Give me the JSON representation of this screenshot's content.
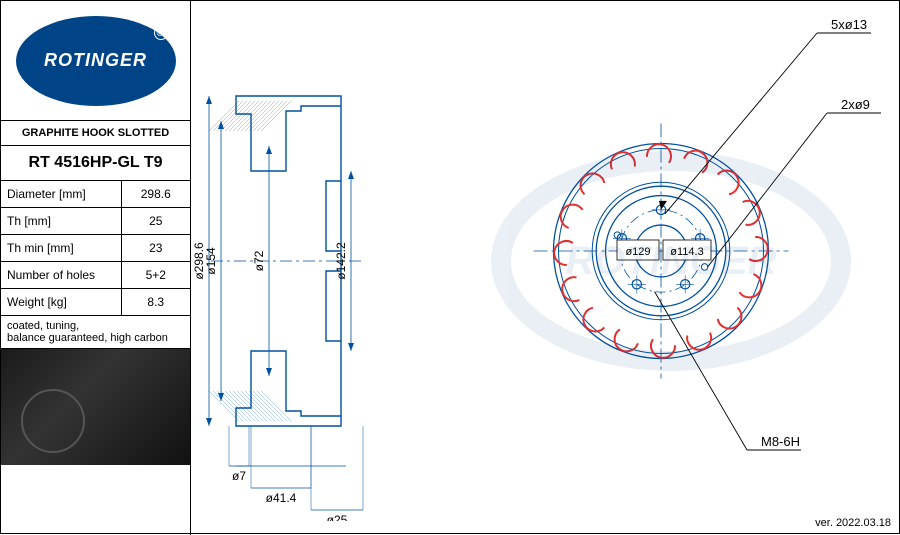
{
  "brand": "ROTINGER",
  "subtitle": "GRAPHITE HOOK SLOTTED",
  "part_number": "RT 4516HP-GL T9",
  "specs": [
    {
      "label": "Diameter [mm]",
      "value": "298.6"
    },
    {
      "label": "Th [mm]",
      "value": "25"
    },
    {
      "label": "Th min [mm]",
      "value": "23"
    },
    {
      "label": "Number of holes",
      "value": "5+2"
    },
    {
      "label": "Weight [kg]",
      "value": "8.3"
    }
  ],
  "notes": "coated, tuning,\nbalance guaranteed, high carbon",
  "version": "ver. 2022.03.18",
  "side_view": {
    "dims": [
      "ø298.6",
      "ø154",
      "ø72",
      "ø142.2"
    ],
    "bottom_dims": [
      "ø7",
      "ø41.4",
      "ø25"
    ],
    "line_color": "#0050a0",
    "line_width": 1.25
  },
  "front_view": {
    "outer_diameter": 298.6,
    "friction_inner_d": 180,
    "hub_d": 154,
    "bore_d": 72,
    "bolt_circle_d": 114.3,
    "alt_circle_d": 129,
    "bolt_holes": {
      "count": 5,
      "diameter": 13
    },
    "pin_holes": {
      "count": 2,
      "diameter": 9
    },
    "thread_spec": "M8-6H",
    "center_labels": [
      "ø129",
      "ø114.3"
    ],
    "callouts": [
      "5xø13",
      "2xø9",
      "M8-6H"
    ],
    "slot_count": 16,
    "slot_color": "#e03030",
    "line_color": "#0050a0",
    "crosshair_color": "#0050a0"
  },
  "colors": {
    "brand_blue": "#004488",
    "draw_blue": "#0050a0",
    "slot_red": "#e03030",
    "text": "#000000",
    "bg": "#ffffff"
  }
}
